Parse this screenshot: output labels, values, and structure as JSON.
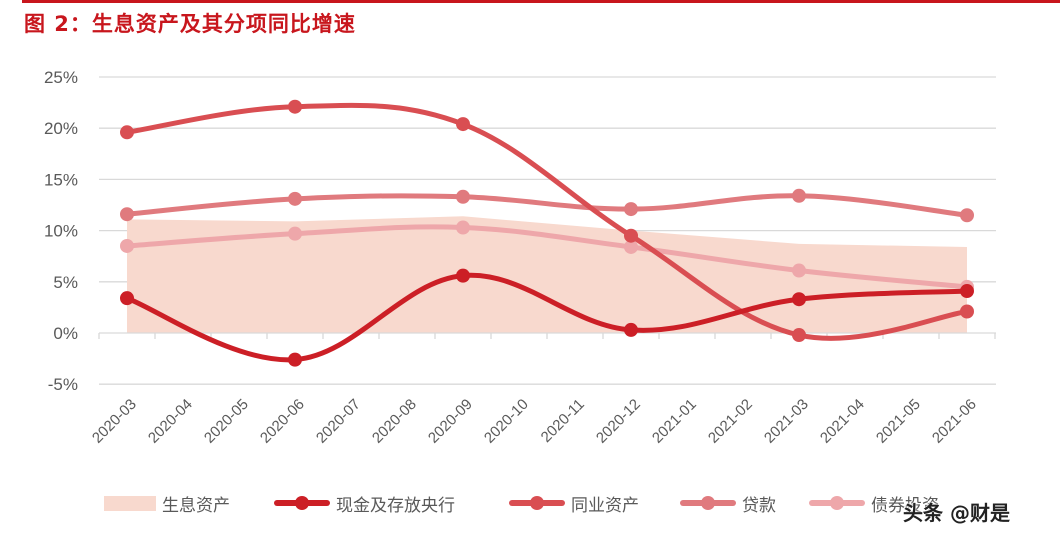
{
  "header": {
    "title": "图 2：生息资产及其分项同比增速"
  },
  "watermark": "头条 @财是",
  "colors": {
    "accent": "#c8161d",
    "interest_earning_assets": "#f8d9ce",
    "cash_central_bank": "#cc1f26",
    "interbank_assets": "#d94e52",
    "loans": "#e07a7e",
    "bond_investment": "#eea7aa",
    "grid": "#d9d9d9",
    "axis_text": "#595959"
  },
  "legend": [
    {
      "label": "生息资产",
      "type": "area",
      "color": "#f8d9ce"
    },
    {
      "label": "现金及存放央行",
      "type": "line",
      "color": "#cc1f26"
    },
    {
      "label": "同业资产",
      "type": "line",
      "color": "#d94e52"
    },
    {
      "label": "贷款",
      "type": "line",
      "color": "#e07a7e"
    },
    {
      "label": "债券投资",
      "type": "line",
      "color": "#eea7aa"
    }
  ],
  "chart_data": {
    "type": "line",
    "title": "图 2：生息资产及其分项同比增速",
    "xlabel": "",
    "ylabel": "",
    "ylim": [
      -5,
      25
    ],
    "yticks": [
      "25%",
      "20%",
      "15%",
      "10%",
      "5%",
      "0%",
      "-5%"
    ],
    "ytick_values": [
      25,
      20,
      15,
      10,
      5,
      0,
      -5
    ],
    "grid": true,
    "legend_position": "bottom",
    "categories": [
      "2020-03",
      "2020-04",
      "2020-05",
      "2020-06",
      "2020-07",
      "2020-08",
      "2020-09",
      "2020-10",
      "2020-11",
      "2020-12",
      "2021-01",
      "2021-02",
      "2021-03",
      "2021-04",
      "2021-05",
      "2021-06"
    ],
    "data_x": [
      "2020-03",
      "2020-06",
      "2020-09",
      "2020-12",
      "2021-03",
      "2021-06"
    ],
    "series": [
      {
        "name": "生息资产",
        "type": "area",
        "values": [
          11.1,
          10.9,
          11.4,
          10.0,
          8.7,
          8.4
        ]
      },
      {
        "name": "现金及存放央行",
        "type": "line",
        "values": [
          3.4,
          -2.6,
          5.6,
          0.3,
          3.3,
          4.1
        ]
      },
      {
        "name": "同业资产",
        "type": "line",
        "values": [
          19.6,
          22.1,
          20.4,
          9.5,
          -0.2,
          2.1
        ]
      },
      {
        "name": "贷款",
        "type": "line",
        "values": [
          11.6,
          13.1,
          13.3,
          12.1,
          13.4,
          11.5
        ]
      },
      {
        "name": "债券投资",
        "type": "line",
        "values": [
          8.5,
          9.7,
          10.3,
          8.4,
          6.1,
          4.5
        ]
      }
    ]
  }
}
